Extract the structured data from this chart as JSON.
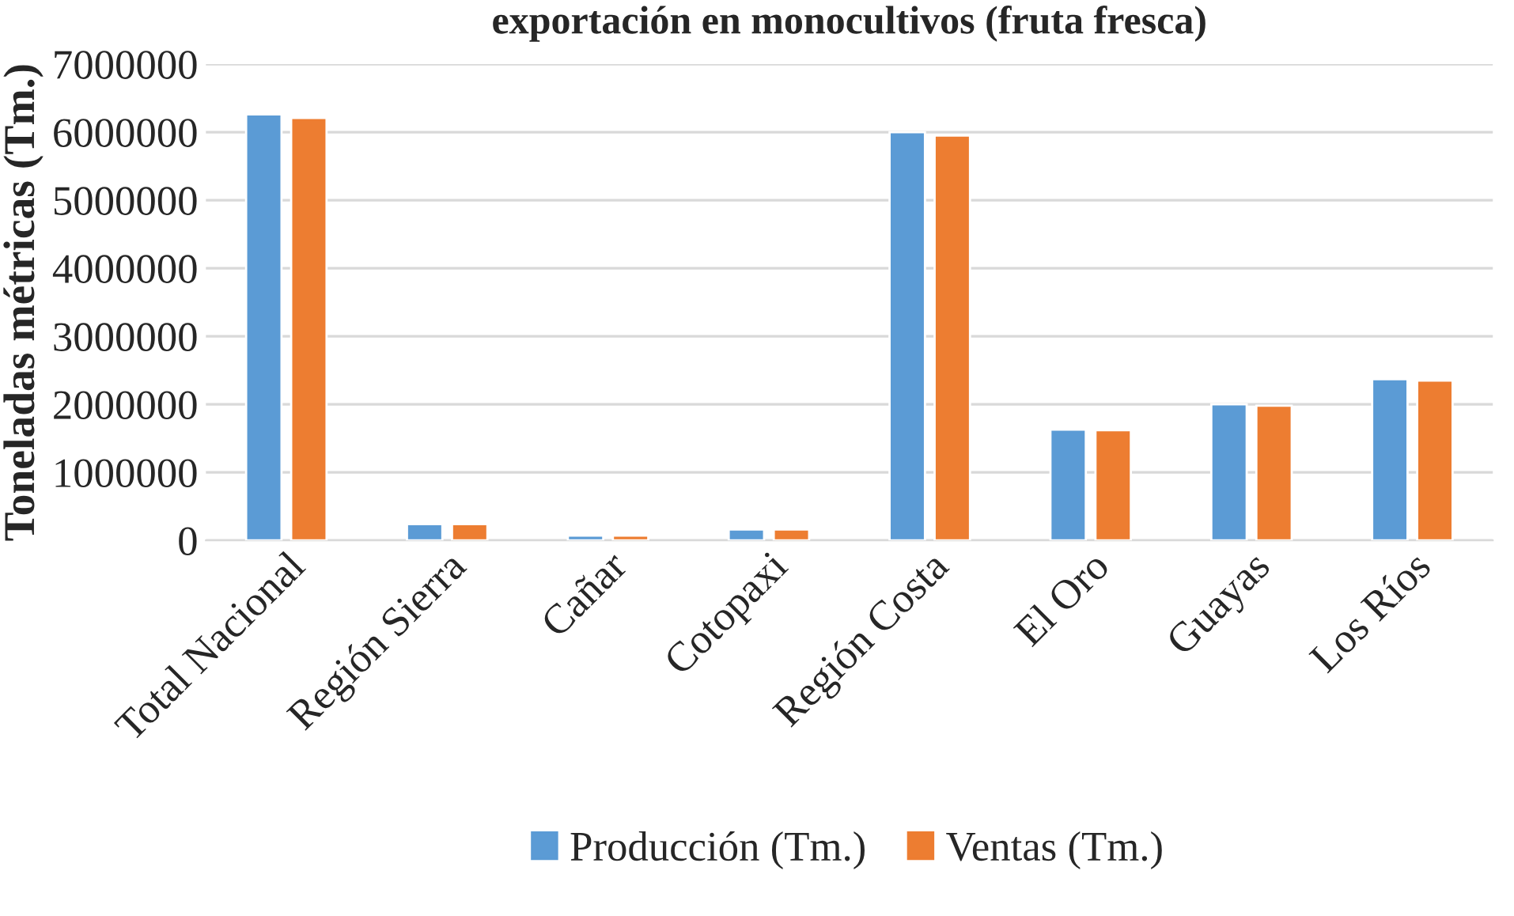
{
  "chart_data": {
    "type": "bar",
    "title": "exportación en monocultivos (fruta fresca)",
    "ylabel": "Toneladas métricas (Tm.)",
    "categories": [
      "Total Nacional",
      "Región Sierra",
      "Cañar",
      "Cotopaxi",
      "Región Costa",
      "El Oro",
      "Guayas",
      "Los Ríos"
    ],
    "series": [
      {
        "name": "Producción (Tm.)",
        "color": "#5b9bd5",
        "values": [
          6260000,
          240000,
          70000,
          160000,
          6000000,
          1630000,
          2000000,
          2370000
        ]
      },
      {
        "name": "Ventas (Tm.)",
        "color": "#ed7d31",
        "values": [
          6210000,
          240000,
          70000,
          160000,
          5950000,
          1620000,
          1980000,
          2350000
        ]
      }
    ],
    "ylim": [
      0,
      7000000
    ],
    "yticks": [
      0,
      1000000,
      2000000,
      3000000,
      4000000,
      5000000,
      6000000,
      7000000
    ],
    "grid": "y",
    "legend": "bottom"
  }
}
